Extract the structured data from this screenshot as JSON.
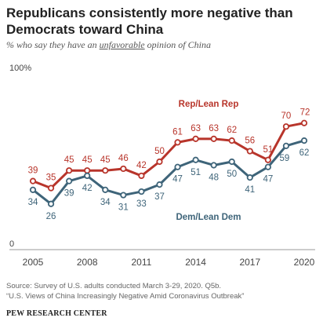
{
  "title": "Republicans consistently more negative than Democrats toward China",
  "subtitle": {
    "before": "% who say they have an ",
    "underlined": "unfavorable",
    "after": " opinion of China"
  },
  "source": {
    "line1": "Source: Survey of U.S. adults conducted March 3-29, 2020. Q5b.",
    "line2": "“U.S. Views of China Increasingly Negative Amid Coronavirus Outbreak”"
  },
  "footer": "PEW RESEARCH CENTER",
  "chart_data": {
    "type": "line",
    "ylim": [
      0,
      100
    ],
    "xlim": [
      2005,
      2020
    ],
    "y_tick_labels": [
      {
        "value": 100,
        "label": "100%"
      },
      {
        "value": 0,
        "label": "0"
      }
    ],
    "x_tick_labels": [
      "2005",
      "2008",
      "2011",
      "2014",
      "2017",
      "2020"
    ],
    "x_tick_values": [
      2005,
      2008,
      2011,
      2014,
      2017,
      2020
    ],
    "grid": false,
    "series": [
      {
        "name": "Rep/Lean Rep",
        "color": "#b8352b",
        "x": [
          2005,
          2006,
          2007,
          2008,
          2009,
          2010,
          2011,
          2012,
          2013,
          2014,
          2015,
          2016,
          2017,
          2018,
          2019,
          2020
        ],
        "values": [
          39,
          35,
          45,
          45,
          45,
          46,
          42,
          50,
          61,
          63,
          63,
          62,
          56,
          51,
          70,
          72
        ]
      },
      {
        "name": "Dem/Lean Dem",
        "color": "#3e6479",
        "x": [
          2005,
          2006,
          2007,
          2008,
          2009,
          2010,
          2011,
          2012,
          2013,
          2014,
          2015,
          2016,
          2017,
          2018,
          2019,
          2020
        ],
        "values": [
          34,
          26,
          39,
          42,
          34,
          31,
          33,
          37,
          47,
          51,
          48,
          50,
          41,
          47,
          59,
          62
        ]
      }
    ]
  }
}
